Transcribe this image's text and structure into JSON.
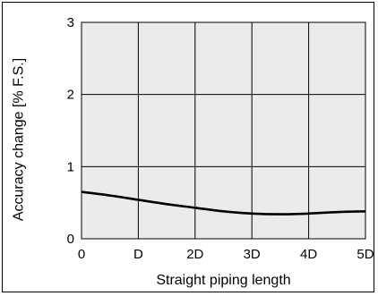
{
  "chart_data": {
    "type": "line",
    "xlabel": "Straight piping length",
    "ylabel": "Accuracy change [% F.S.]",
    "x_ticks": [
      "0",
      "D",
      "2D",
      "3D",
      "4D",
      "5D"
    ],
    "y_ticks": [
      "0",
      "1",
      "2",
      "3"
    ],
    "xlim": [
      0,
      5
    ],
    "ylim": [
      0,
      3
    ],
    "grid": true,
    "colors": {
      "plot_background": "#ebebeb",
      "grid": "#000000",
      "line": "#000000"
    },
    "series": [
      {
        "x": [
          0,
          0.5,
          1,
          1.5,
          2,
          2.5,
          3,
          3.5,
          4,
          4.5,
          5
        ],
        "values": [
          0.65,
          0.6,
          0.54,
          0.48,
          0.43,
          0.38,
          0.35,
          0.34,
          0.35,
          0.37,
          0.38
        ]
      }
    ]
  }
}
